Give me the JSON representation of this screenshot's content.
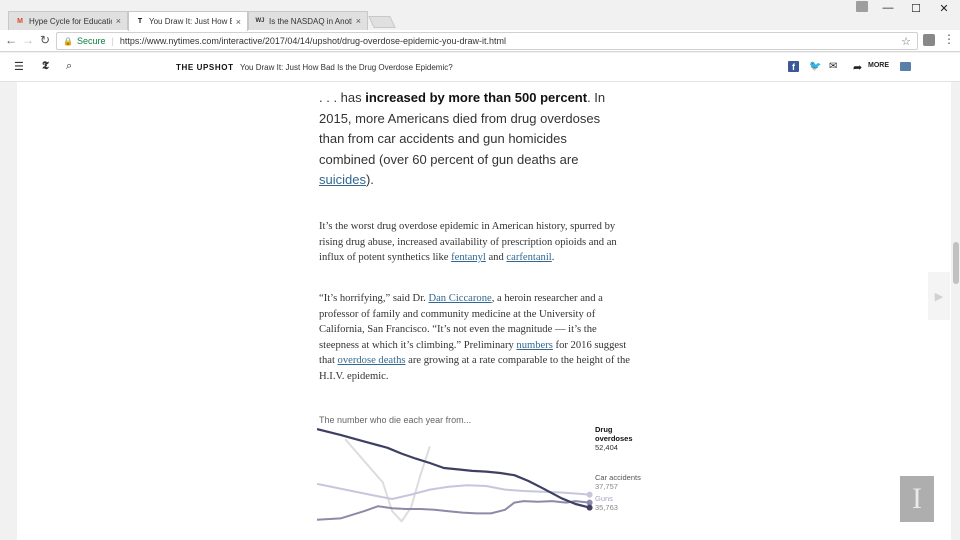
{
  "browser": {
    "tabs": [
      {
        "label": "Hype Cycle for Education",
        "favicon": "M",
        "favicon_color": "#d44b2b"
      },
      {
        "label": "You Draw It: Just How Ba",
        "favicon": "T",
        "favicon_color": "#111111"
      },
      {
        "label": "Is the NASDAQ in Anoth",
        "favicon": "WJ",
        "favicon_color": "#333333"
      }
    ],
    "close_glyph": "×",
    "secure_label": "Secure",
    "url": "https://www.nytimes.com/interactive/2017/04/14/upshot/drug-overdose-epidemic-you-draw-it.html"
  },
  "header": {
    "section": "THE UPSHOT",
    "headline": "You Draw It: Just How Bad Is the Drug Overdose Epidemic?",
    "more_label": "MORE"
  },
  "article": {
    "lead_pre": ". . . has ",
    "lead_bold": "increased by more than 500 percent",
    "lead_post": ". In 2015, more Americans died from drug overdoses than from car accidents and gun homicides combined (over 60 percent of gun deaths are ",
    "lead_link": "suicides",
    "lead_end": ").",
    "p1_text": "It’s the worst drug overdose epidemic in American history, spurred by rising drug abuse, increased availability of prescription opioids and an influx of potent synthetics like ",
    "p1_link1": "fentanyl",
    "p1_and": " and ",
    "p1_link2": "carfentanil",
    "p1_end": ".",
    "p2_a": "“It’s horrifying,” said Dr. ",
    "p2_link1": "Dan Ciccarone",
    "p2_b": ", a heroin researcher and a professor of family and community medicine at the University of California, San Francisco. “It’s not even the magnitude — it’s the steepness at which it’s climbing.” Preliminary ",
    "p2_link2": "numbers",
    "p2_c": " for 2016 suggest that ",
    "p2_link3": "overdose deaths",
    "p2_d": " are growing at a rate comparable to the height of the H.I.V. epidemic."
  },
  "chart_data": {
    "type": "line",
    "title": "The number who die each year from...",
    "series": [
      {
        "name": "Drug overdoses",
        "name_line1": "Drug",
        "name_line2": "overdoses",
        "end_value": "52,404",
        "color": "#3e3f63",
        "points": [
          [
            0,
            154
          ],
          [
            5,
            146
          ],
          [
            10,
            137
          ],
          [
            15,
            128
          ],
          [
            18,
            120
          ],
          [
            21,
            113
          ],
          [
            24,
            107
          ],
          [
            27,
            100
          ],
          [
            30,
            98
          ],
          [
            33,
            96
          ],
          [
            36,
            95
          ],
          [
            39,
            93
          ],
          [
            42,
            90
          ],
          [
            45,
            82
          ],
          [
            48,
            72
          ],
          [
            52,
            58
          ],
          [
            55,
            50
          ],
          [
            58,
            45
          ]
        ]
      },
      {
        "name": "Car accidents",
        "end_value": "37,757",
        "color": "#8d8aa8",
        "points": [
          [
            0,
            28
          ],
          [
            5,
            30
          ],
          [
            10,
            40
          ],
          [
            13,
            47
          ],
          [
            16,
            44
          ],
          [
            19,
            43
          ],
          [
            22,
            43
          ],
          [
            25,
            42
          ],
          [
            28,
            40
          ],
          [
            31,
            38
          ],
          [
            34,
            37
          ],
          [
            37,
            37
          ],
          [
            40,
            42
          ],
          [
            42,
            52
          ],
          [
            44,
            54
          ],
          [
            47,
            53
          ],
          [
            50,
            54
          ],
          [
            53,
            52
          ],
          [
            55,
            54
          ],
          [
            58,
            52
          ]
        ]
      },
      {
        "name": "Guns",
        "end_value": "35,763",
        "color": "#c9c5dc",
        "points": [
          [
            0,
            78
          ],
          [
            6,
            70
          ],
          [
            12,
            62
          ],
          [
            16,
            57
          ],
          [
            20,
            63
          ],
          [
            24,
            70
          ],
          [
            28,
            74
          ],
          [
            32,
            76
          ],
          [
            36,
            75
          ],
          [
            40,
            70
          ],
          [
            44,
            68
          ],
          [
            48,
            67
          ],
          [
            52,
            66
          ],
          [
            56,
            64
          ],
          [
            58,
            63
          ]
        ]
      },
      {
        "name": "",
        "color": "#dddddd",
        "points": [
          [
            6,
            140
          ],
          [
            10,
            110
          ],
          [
            14,
            80
          ],
          [
            16,
            40
          ],
          [
            18,
            26
          ],
          [
            20,
            45
          ],
          [
            22,
            90
          ],
          [
            24,
            130
          ]
        ]
      }
    ]
  }
}
